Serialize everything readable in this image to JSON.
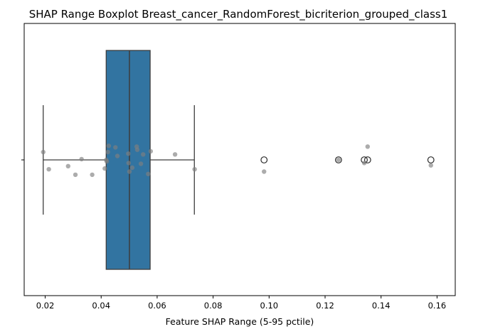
{
  "chart_data": {
    "type": "boxplot",
    "title": "SHAP Range Boxplot Breast_cancer_RandomForest_bicriterion_grouped_class1",
    "xlabel": "Feature SHAP Range (5-95 pctile)",
    "ylabel": "",
    "xlim": [
      0.0125,
      0.1665
    ],
    "xticks": [
      0.02,
      0.04,
      0.06,
      0.08,
      0.1,
      0.12,
      0.14,
      0.16
    ],
    "xtick_labels": [
      "0.02",
      "0.04",
      "0.06",
      "0.08",
      "0.10",
      "0.12",
      "0.14",
      "0.16"
    ],
    "orientation": "horizontal",
    "grid": false,
    "box": {
      "q1": 0.0418,
      "median": 0.0501,
      "q3": 0.0575,
      "whisker_low": 0.0193,
      "whisker_high": 0.0733,
      "outliers": [
        0.0982,
        0.1248,
        0.134,
        0.1352,
        0.1578
      ],
      "color": "#3274a1"
    },
    "points": [
      {
        "x": 0.0193,
        "y": 0.1
      },
      {
        "x": 0.0213,
        "y": -0.12
      },
      {
        "x": 0.0282,
        "y": -0.08
      },
      {
        "x": 0.0308,
        "y": -0.19
      },
      {
        "x": 0.033,
        "y": 0.01
      },
      {
        "x": 0.0368,
        "y": -0.19
      },
      {
        "x": 0.0413,
        "y": -0.11
      },
      {
        "x": 0.0418,
        "y": 0.0
      },
      {
        "x": 0.042,
        "y": -0.02
      },
      {
        "x": 0.0424,
        "y": 0.1
      },
      {
        "x": 0.0427,
        "y": 0.18
      },
      {
        "x": 0.0451,
        "y": 0.16
      },
      {
        "x": 0.0458,
        "y": 0.05
      },
      {
        "x": 0.0497,
        "y": 0.08
      },
      {
        "x": 0.0498,
        "y": -0.04
      },
      {
        "x": 0.0501,
        "y": -0.15
      },
      {
        "x": 0.0511,
        "y": -0.1
      },
      {
        "x": 0.0527,
        "y": 0.17
      },
      {
        "x": 0.0529,
        "y": 0.13
      },
      {
        "x": 0.0542,
        "y": -0.05
      },
      {
        "x": 0.055,
        "y": 0.07
      },
      {
        "x": 0.0568,
        "y": -0.18
      },
      {
        "x": 0.0577,
        "y": 0.11
      },
      {
        "x": 0.0664,
        "y": 0.07
      },
      {
        "x": 0.0734,
        "y": -0.12
      },
      {
        "x": 0.0982,
        "y": -0.15
      },
      {
        "x": 0.1248,
        "y": 0.0
      },
      {
        "x": 0.134,
        "y": -0.04
      },
      {
        "x": 0.1352,
        "y": 0.17
      },
      {
        "x": 0.1578,
        "y": -0.07
      }
    ],
    "point_color": "#808080"
  }
}
